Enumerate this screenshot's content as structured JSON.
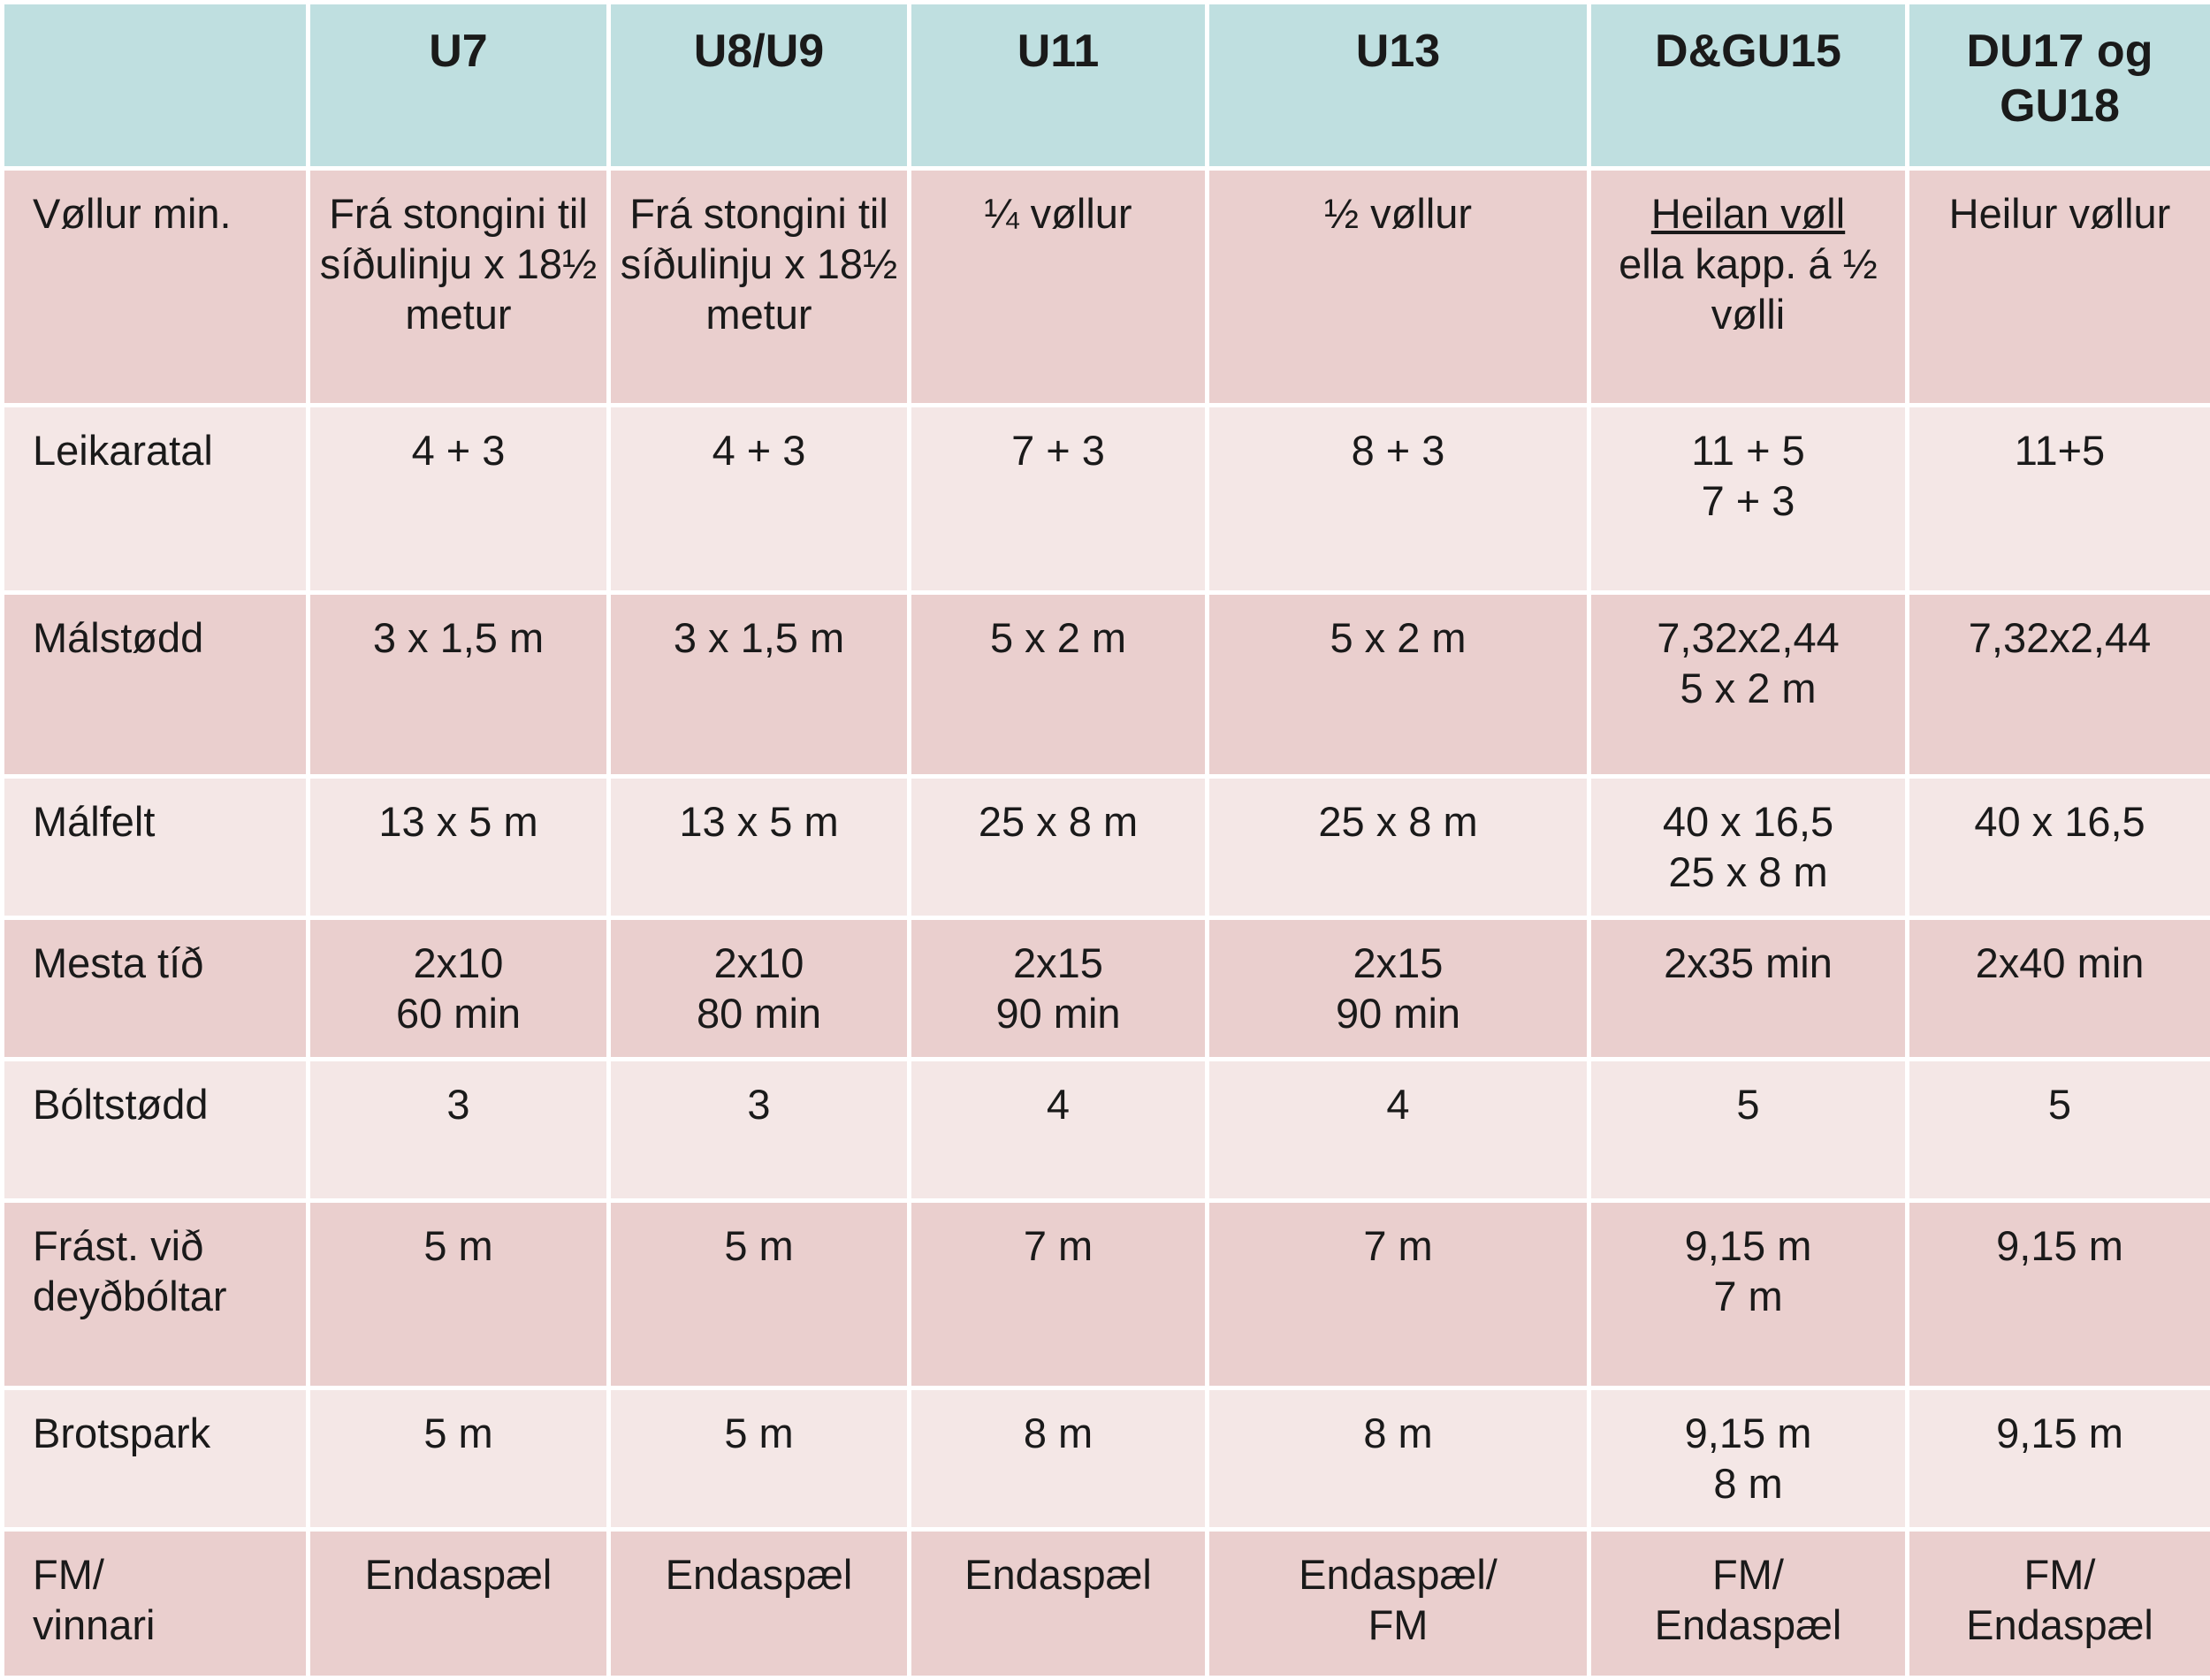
{
  "header": {
    "corner": "",
    "columns": [
      "U7",
      "U8/U9",
      "U11",
      "U13",
      "D&GU15",
      "DU17 og GU18"
    ]
  },
  "rows": [
    {
      "label": "Vøllur min.",
      "cells": [
        "Frá stongini til síðulinju x 18½ metur",
        "Frá stongini til síðulinju x 18½ metur",
        "¼ vøllur",
        "½ vøllur",
        {
          "underlined": "Heilan vøll",
          "rest": "ella kapp. á ½ vølli"
        },
        "Heilur vøllur"
      ]
    },
    {
      "label": "Leikaratal",
      "cells": [
        "4 + 3",
        "4 + 3",
        "7 + 3",
        "8 + 3",
        "11 + 5\n7 + 3",
        "11+5"
      ]
    },
    {
      "label": "Málstødd",
      "cells": [
        "3 x 1,5 m",
        "3 x 1,5 m",
        "5 x 2 m",
        "5 x 2 m",
        "7,32x2,44\n5 x 2 m",
        "7,32x2,44"
      ]
    },
    {
      "label": "Málfelt",
      "cells": [
        "13 x 5 m",
        "13 x 5 m",
        "25 x 8 m",
        "25 x 8 m",
        "40 x 16,5\n25 x 8 m",
        "40 x 16,5"
      ]
    },
    {
      "label": "Mesta tíð",
      "cells": [
        "2x10\n60 min",
        "2x10\n80 min",
        "2x15\n90 min",
        "2x15\n90 min",
        "2x35 min",
        "2x40 min"
      ]
    },
    {
      "label": "Bóltstødd",
      "cells": [
        "3",
        "3",
        "4",
        "4",
        "5",
        "5"
      ]
    },
    {
      "label": "Frást. við\ndeyðbóltar",
      "cells": [
        "5 m",
        "5 m",
        "7 m",
        "7 m",
        "9,15 m\n7 m",
        "9,15 m"
      ]
    },
    {
      "label": "Brotspark",
      "cells": [
        "5 m",
        "5 m",
        "8 m",
        "8 m",
        "9,15 m\n8 m",
        "9,15 m"
      ]
    },
    {
      "label": "FM/\nvinnari",
      "cells": [
        "Endaspæl",
        "Endaspæl",
        "Endaspæl",
        "Endaspæl/\nFM",
        "FM/\nEndaspæl",
        "FM/\nEndaspæl"
      ]
    }
  ],
  "colors": {
    "header_bg": "#bfdfe0",
    "row_dark_bg": "#eacfce",
    "row_light_bg": "#f4e7e6",
    "grid_line": "#ffffff",
    "text": "#1a1a1a"
  }
}
